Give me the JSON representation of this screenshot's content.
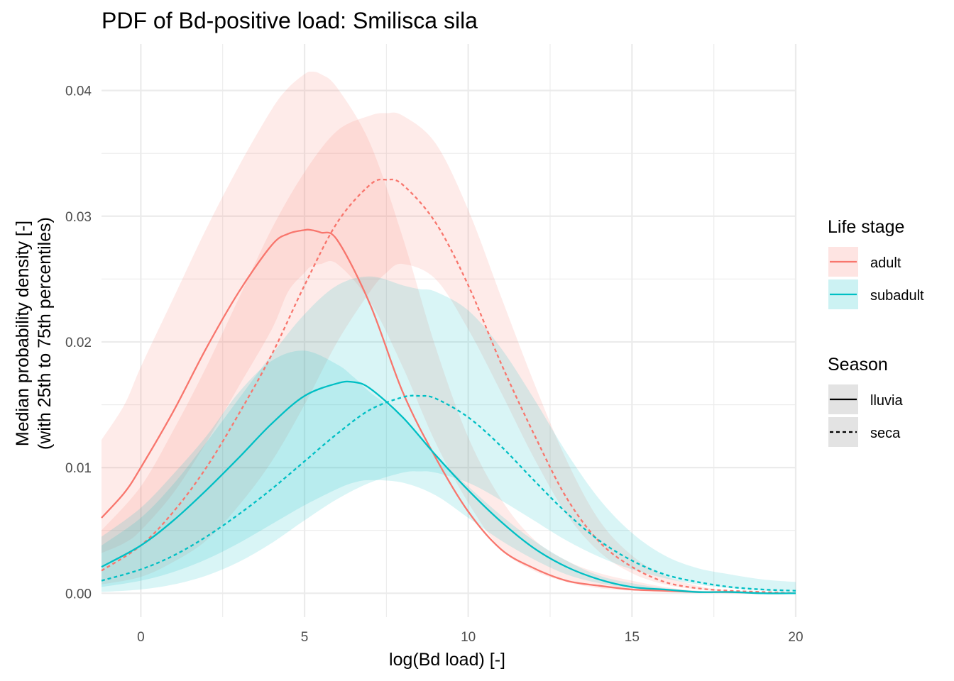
{
  "chart_data": {
    "type": "line",
    "title": "PDF of Bd-positive load: Smilisca sila",
    "xlabel": "log(Bd load) [-]",
    "ylabel_lines": [
      "Median probability density [-]",
      "(with 25th to 75th percentiles)"
    ],
    "xlim": [
      -1.2,
      20
    ],
    "ylim": [
      -0.0019,
      0.0437
    ],
    "x_ticks": [
      {
        "value": 0,
        "label": "0"
      },
      {
        "value": 5,
        "label": "5"
      },
      {
        "value": 10,
        "label": "10"
      },
      {
        "value": 15,
        "label": "15"
      },
      {
        "value": 20,
        "label": "20"
      }
    ],
    "y_ticks": [
      {
        "value": 0,
        "label": "0.00"
      },
      {
        "value": 0.01,
        "label": "0.01"
      },
      {
        "value": 0.02,
        "label": "0.02"
      },
      {
        "value": 0.03,
        "label": "0.03"
      },
      {
        "value": 0.04,
        "label": "0.04"
      }
    ],
    "grid": true,
    "legend_position": "right",
    "legend": {
      "life_stage_title": "Life stage",
      "life_stages": [
        {
          "label": "adult",
          "color": "#F8766D"
        },
        {
          "label": "subadult",
          "color": "#00BFC4"
        }
      ],
      "season_title": "Season",
      "seasons": [
        {
          "label": "lluvia",
          "dash": "solid"
        },
        {
          "label": "seca",
          "dash": "dashed"
        }
      ]
    },
    "series": [
      {
        "life_stage": "adult",
        "season": "lluvia",
        "color": "#F8766D",
        "dash": "solid",
        "x": [
          -1.2,
          -0.5,
          0,
          1,
          2,
          3,
          4,
          4.5,
          5,
          5.2,
          5.5,
          6,
          7,
          8,
          9,
          10,
          11,
          12,
          13,
          14,
          15,
          16,
          17,
          18,
          19,
          20
        ],
        "median": [
          0.006,
          0.008,
          0.01,
          0.0145,
          0.0195,
          0.024,
          0.0277,
          0.0286,
          0.0289,
          0.0289,
          0.0287,
          0.0281,
          0.023,
          0.016,
          0.0108,
          0.0065,
          0.0035,
          0.002,
          0.001,
          0.0006,
          0.0003,
          0.0002,
          0.0001,
          0.0001,
          0.0,
          0.0
        ],
        "p25": [
          0.0032,
          0.004,
          0.005,
          0.008,
          0.012,
          0.0165,
          0.021,
          0.024,
          0.0255,
          0.026,
          0.0262,
          0.0262,
          0.0232,
          0.018,
          0.012,
          0.0072,
          0.0035,
          0.0018,
          0.0009,
          0.0004,
          0.0002,
          0.0001,
          0.0001,
          0.0,
          0.0,
          0.0
        ],
        "p75": [
          0.0122,
          0.015,
          0.018,
          0.0235,
          0.029,
          0.034,
          0.0385,
          0.0402,
          0.0413,
          0.0415,
          0.0413,
          0.0402,
          0.0358,
          0.0283,
          0.0196,
          0.0124,
          0.0075,
          0.0043,
          0.0026,
          0.0016,
          0.001,
          0.0005,
          0.0002,
          0.0001,
          0.0,
          0.0
        ]
      },
      {
        "life_stage": "adult",
        "season": "seca",
        "color": "#F8766D",
        "dash": "dashed",
        "x": [
          -1.2,
          0,
          1,
          2,
          3,
          4,
          5,
          6,
          7,
          7.5,
          8,
          9,
          10,
          11,
          12,
          13,
          14,
          15,
          16,
          17,
          18,
          19,
          20
        ],
        "median": [
          0.0018,
          0.0038,
          0.0065,
          0.01,
          0.0143,
          0.019,
          0.0245,
          0.0295,
          0.0325,
          0.0329,
          0.0325,
          0.0295,
          0.0245,
          0.0183,
          0.0127,
          0.0076,
          0.0041,
          0.0021,
          0.0009,
          0.0004,
          0.0002,
          0.0001,
          0.0
        ],
        "p25": [
          0.0007,
          0.0013,
          0.0025,
          0.0042,
          0.007,
          0.0105,
          0.015,
          0.02,
          0.024,
          0.0255,
          0.0262,
          0.025,
          0.021,
          0.016,
          0.0108,
          0.0063,
          0.0033,
          0.0016,
          0.0007,
          0.0003,
          0.0001,
          0.0,
          0.0
        ],
        "p75": [
          0.005,
          0.0085,
          0.013,
          0.018,
          0.0235,
          0.029,
          0.0335,
          0.0368,
          0.038,
          0.0382,
          0.038,
          0.0358,
          0.0305,
          0.0236,
          0.0168,
          0.0106,
          0.0058,
          0.003,
          0.0014,
          0.0006,
          0.0002,
          0.0001,
          0.0
        ]
      },
      {
        "life_stage": "subadult",
        "season": "lluvia",
        "color": "#00BFC4",
        "dash": "solid",
        "x": [
          -1.2,
          0,
          1,
          2,
          3,
          4,
          5,
          6,
          6.5,
          7,
          8,
          9,
          10,
          11,
          12,
          13,
          14,
          15,
          16,
          17,
          18,
          19,
          20
        ],
        "median": [
          0.0021,
          0.0038,
          0.0058,
          0.0082,
          0.0108,
          0.0135,
          0.0157,
          0.0167,
          0.0168,
          0.0163,
          0.014,
          0.011,
          0.0082,
          0.0057,
          0.0036,
          0.0021,
          0.0011,
          0.0005,
          0.0003,
          0.0001,
          0.0001,
          0.0,
          0.0
        ],
        "p25": [
          0.0005,
          0.001,
          0.0017,
          0.0027,
          0.004,
          0.0055,
          0.007,
          0.0083,
          0.0088,
          0.009,
          0.0088,
          0.0078,
          0.006,
          0.0042,
          0.0027,
          0.0015,
          0.0008,
          0.0004,
          0.0002,
          0.0001,
          0.0,
          0.0,
          0.0
        ],
        "p75": [
          0.0045,
          0.0068,
          0.0095,
          0.0125,
          0.016,
          0.0185,
          0.0193,
          0.0182,
          0.0172,
          0.016,
          0.014,
          0.011,
          0.0085,
          0.0062,
          0.0042,
          0.0026,
          0.0014,
          0.0008,
          0.0004,
          0.0002,
          0.0001,
          0.0,
          0.0
        ]
      },
      {
        "life_stage": "subadult",
        "season": "seca",
        "color": "#00BFC4",
        "dash": "dashed",
        "x": [
          -1.2,
          0,
          1,
          2,
          3,
          4,
          5,
          6,
          7,
          8,
          8.5,
          9,
          10,
          11,
          12,
          13,
          14,
          15,
          16,
          17,
          18,
          19,
          20
        ],
        "median": [
          0.001,
          0.0019,
          0.003,
          0.0045,
          0.0063,
          0.0083,
          0.0105,
          0.0127,
          0.0146,
          0.0156,
          0.0157,
          0.0155,
          0.014,
          0.0117,
          0.009,
          0.0064,
          0.0042,
          0.0026,
          0.0015,
          0.0009,
          0.0005,
          0.0003,
          0.0002
        ],
        "p25": [
          0.0001,
          0.0003,
          0.0007,
          0.0014,
          0.0025,
          0.004,
          0.0058,
          0.0075,
          0.0088,
          0.0096,
          0.0097,
          0.0096,
          0.0088,
          0.0074,
          0.0058,
          0.0042,
          0.0029,
          0.0019,
          0.0012,
          0.0007,
          0.0004,
          0.0002,
          0.0001
        ],
        "p75": [
          0.0038,
          0.006,
          0.0087,
          0.012,
          0.0155,
          0.019,
          0.0222,
          0.0245,
          0.0252,
          0.0245,
          0.0242,
          0.024,
          0.0225,
          0.0195,
          0.0155,
          0.0112,
          0.0075,
          0.0048,
          0.003,
          0.002,
          0.0015,
          0.0011,
          0.0009
        ]
      }
    ]
  }
}
